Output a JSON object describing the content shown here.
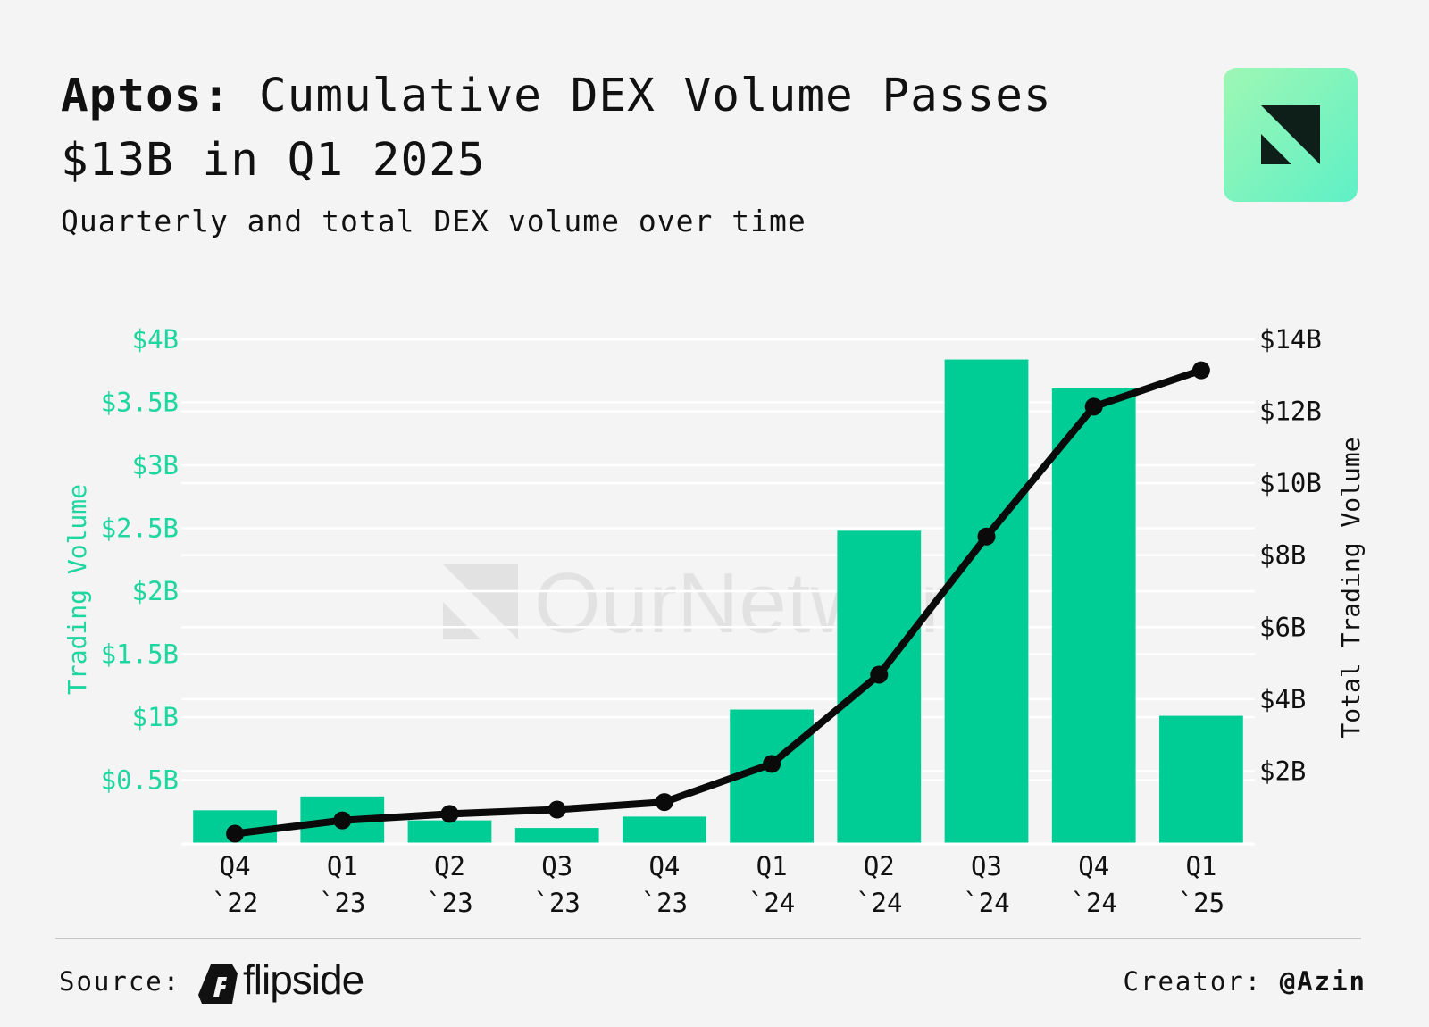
{
  "header": {
    "title_bold": "Aptos:",
    "title_rest": " Cumulative DEX Volume Passes $13B in Q1 2025",
    "subtitle": "Quarterly and total DEX volume over time",
    "logo_icon": "ournetwork-logo-icon"
  },
  "watermark": {
    "text": "OurNetwork"
  },
  "colors": {
    "bar": "#00cc95",
    "line": "#0a0a0a",
    "left_axis": "#1ed69f",
    "grid": "#ffffff",
    "background": "#f4f4f4"
  },
  "chart_data": {
    "type": "bar",
    "categories": [
      [
        "Q4",
        "`22"
      ],
      [
        "Q1",
        "`23"
      ],
      [
        "Q2",
        "`23"
      ],
      [
        "Q3",
        "`23"
      ],
      [
        "Q4",
        "`23"
      ],
      [
        "Q1",
        "`24"
      ],
      [
        "Q2",
        "`24"
      ],
      [
        "Q3",
        "`24"
      ],
      [
        "Q4",
        "`24"
      ],
      [
        "Q1",
        "`25"
      ]
    ],
    "series": [
      {
        "name": "Trading Volume",
        "type": "bar",
        "axis": "left",
        "values": [
          0.26,
          0.37,
          0.18,
          0.12,
          0.21,
          1.06,
          2.48,
          3.84,
          3.61,
          1.01
        ]
      },
      {
        "name": "Total Trading Volume",
        "type": "line",
        "axis": "right",
        "values": [
          0.26,
          0.63,
          0.81,
          0.93,
          1.14,
          2.2,
          4.68,
          8.52,
          12.13,
          13.14
        ]
      }
    ],
    "left_axis": {
      "label": "Trading Volume",
      "range": [
        0,
        4
      ],
      "ticks": [
        0.5,
        1,
        1.5,
        2,
        2.5,
        3,
        3.5,
        4
      ],
      "tick_labels": [
        "$0.5B",
        "$1B",
        "$1.5B",
        "$2B",
        "$2.5B",
        "$3B",
        "$3.5B",
        "$4B"
      ]
    },
    "right_axis": {
      "label": "Total Trading Volume",
      "range": [
        0,
        14
      ],
      "ticks": [
        2,
        4,
        6,
        8,
        10,
        12,
        14
      ],
      "tick_labels": [
        "$2B",
        "$4B",
        "$6B",
        "$8B",
        "$10B",
        "$12B",
        "$14B"
      ]
    },
    "grid": true,
    "title": "Aptos: Cumulative DEX Volume Passes $13B in Q1 2025"
  },
  "footer": {
    "source_label": "Source:",
    "source_name": "flipside",
    "source_icon": "flipside-logo-icon",
    "creator_label": "Creator:",
    "creator_handle": "@Azin"
  }
}
